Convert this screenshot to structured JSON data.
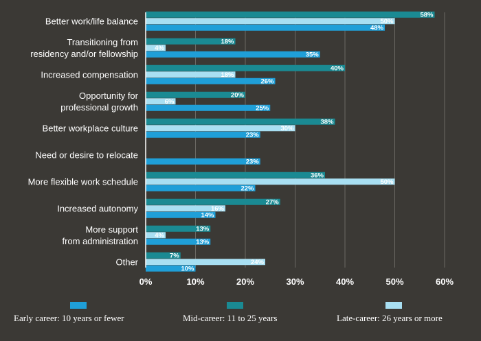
{
  "chart_data": {
    "type": "bar",
    "orientation": "horizontal",
    "categories": [
      [
        "Better work/life balance"
      ],
      [
        "Transitioning from",
        "residency and/or fellowship"
      ],
      [
        "Increased compensation"
      ],
      [
        "Opportunity for",
        "professional growth"
      ],
      [
        "Better workplace culture"
      ],
      [
        "Need or desire to relocate"
      ],
      [
        "More flexible work schedule"
      ],
      [
        "Increased autonomy"
      ],
      [
        "More support",
        "from administration"
      ],
      [
        "Other"
      ]
    ],
    "series": [
      {
        "name": "Mid-career: 11 to 25 years",
        "color": "#1a8a93",
        "values": [
          58,
          18,
          40,
          20,
          38,
          null,
          36,
          27,
          13,
          7
        ]
      },
      {
        "name": "Late-career: 26 years or more",
        "color": "#a8dff2",
        "values": [
          50,
          4,
          18,
          6,
          30,
          null,
          50,
          16,
          4,
          24
        ]
      },
      {
        "name": "Early career: 10 years or fewer",
        "color": "#1f9fd8",
        "values": [
          48,
          35,
          26,
          25,
          23,
          23,
          22,
          14,
          13,
          10
        ]
      }
    ],
    "legend_order": [
      2,
      0,
      1
    ],
    "xlim": [
      0,
      60
    ],
    "xticks": [
      0,
      10,
      20,
      30,
      40,
      50,
      60
    ],
    "tick_suffix": "%",
    "value_suffix": "%",
    "grid": true,
    "legend_position": "bottom"
  }
}
